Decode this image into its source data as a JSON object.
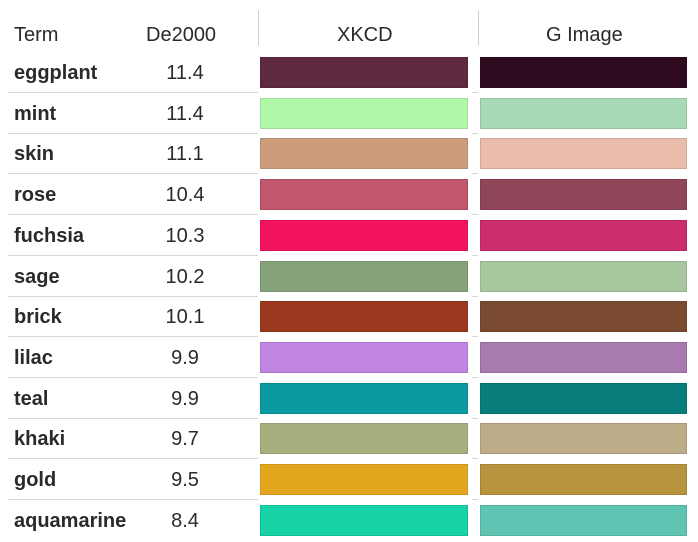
{
  "table": {
    "headers": {
      "term": "Term",
      "de2000": "De2000",
      "xkcd": "XKCD",
      "gimage": "G Image"
    },
    "rows": [
      {
        "term": "eggplant",
        "de2000": "11.4",
        "xkcd_color": "#5f2a40",
        "gimage_color": "#2f0b1f"
      },
      {
        "term": "mint",
        "de2000": "11.4",
        "xkcd_color": "#b0f8a7",
        "gimage_color": "#a9dab6"
      },
      {
        "term": "skin",
        "de2000": "11.1",
        "xkcd_color": "#cb9d7b",
        "gimage_color": "#e9bcac"
      },
      {
        "term": "rose",
        "de2000": "10.4",
        "xkcd_color": "#c0576c",
        "gimage_color": "#904659"
      },
      {
        "term": "fuchsia",
        "de2000": "10.3",
        "xkcd_color": "#f21461",
        "gimage_color": "#cb2d6d"
      },
      {
        "term": "sage",
        "de2000": "10.2",
        "xkcd_color": "#86a27b",
        "gimage_color": "#a7c79f"
      },
      {
        "term": "brick",
        "de2000": "10.1",
        "xkcd_color": "#9b381d",
        "gimage_color": "#7b4b31"
      },
      {
        "term": "lilac",
        "de2000": "9.9",
        "xkcd_color": "#c085e0",
        "gimage_color": "#a97ab0"
      },
      {
        "term": "teal",
        "de2000": "9.9",
        "xkcd_color": "#0a9a9f",
        "gimage_color": "#087d7b"
      },
      {
        "term": "khaki",
        "de2000": "9.7",
        "xkcd_color": "#a6b07f",
        "gimage_color": "#bcac88"
      },
      {
        "term": "gold",
        "de2000": "9.5",
        "xkcd_color": "#e2a71e",
        "gimage_color": "#b8943e"
      },
      {
        "term": "aquamarine",
        "de2000": "8.4",
        "xkcd_color": "#18d3a8",
        "gimage_color": "#60c4b2"
      }
    ]
  }
}
